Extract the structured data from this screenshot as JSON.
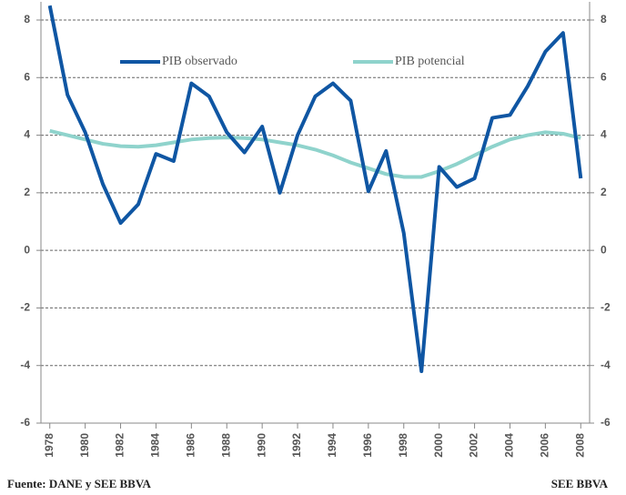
{
  "chart_data": {
    "type": "line",
    "x": [
      1978,
      1979,
      1980,
      1981,
      1982,
      1983,
      1984,
      1985,
      1986,
      1987,
      1988,
      1989,
      1990,
      1991,
      1992,
      1993,
      1994,
      1995,
      1996,
      1997,
      1998,
      1999,
      2000,
      2001,
      2002,
      2003,
      2004,
      2005,
      2006,
      2007,
      2008
    ],
    "series": [
      {
        "name": "PIB observado",
        "color": "#0f56a3",
        "values": [
          8.5,
          5.4,
          4.1,
          2.3,
          0.95,
          1.6,
          3.35,
          3.1,
          5.8,
          5.35,
          4.1,
          3.4,
          4.3,
          2.0,
          4.0,
          5.35,
          5.8,
          5.2,
          2.05,
          3.45,
          0.6,
          -4.2,
          2.9,
          2.2,
          2.5,
          4.6,
          4.7,
          5.7,
          6.9,
          7.55,
          2.5
        ]
      },
      {
        "name": "PIB potencial",
        "color": "#8fd3cc",
        "values": [
          4.15,
          4.0,
          3.85,
          3.7,
          3.62,
          3.6,
          3.65,
          3.75,
          3.85,
          3.9,
          3.92,
          3.9,
          3.85,
          3.75,
          3.65,
          3.5,
          3.3,
          3.05,
          2.85,
          2.65,
          2.55,
          2.55,
          2.75,
          3.0,
          3.3,
          3.6,
          3.85,
          4.0,
          4.1,
          4.05,
          3.9
        ]
      }
    ],
    "xlim": [
      1977.5,
      2008.5
    ],
    "xticks": [
      1978,
      1980,
      1982,
      1984,
      1986,
      1988,
      1990,
      1992,
      1994,
      1996,
      1998,
      2000,
      2002,
      2004,
      2006,
      2008
    ],
    "ylim": [
      -6,
      8
    ],
    "yticks": [
      -6,
      -4,
      -2,
      0,
      2,
      4,
      6,
      8
    ],
    "y2lim": [
      -6,
      8
    ],
    "y2ticks": [
      -6,
      -4,
      -2,
      0,
      2,
      4,
      6,
      8
    ],
    "grid": true,
    "source": "Fuente: DANE y SEE BBVA",
    "credit": "SEE BBVA"
  }
}
